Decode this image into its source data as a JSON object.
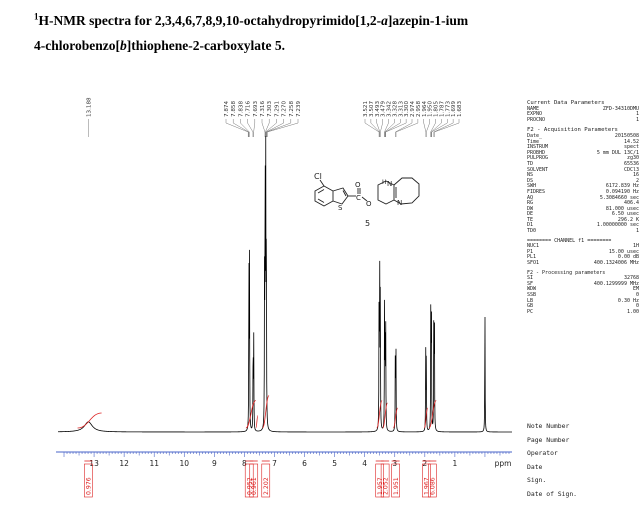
{
  "caption": {
    "nucleus_mass": "1",
    "line1_prefix": "H-NMR spectra for 2,3,4,6,7,8,9,10-octahydropyrimido[1,2-",
    "line1_italic": "a",
    "line1_suffix": "]azepin-1-ium",
    "line2_prefix": "4-chlorobenzo[",
    "line2_italic": "b",
    "line2_suffix": "]thiophene-2-carboxylate 5."
  },
  "structure": {
    "compound_number": "5",
    "cl_label": "Cl",
    "s_label": "S",
    "o_label": "O",
    "n_label": "N",
    "h_label": "H"
  },
  "chart_data": {
    "type": "line",
    "xlabel": "ppm",
    "xlim": [
      14.2,
      -0.9
    ],
    "x_reversed": true,
    "tick_values": [
      13,
      12,
      11,
      10,
      9,
      8,
      7,
      6,
      5,
      4,
      3,
      2,
      1
    ],
    "tick_labels": [
      "13",
      "12",
      "11",
      "10",
      "9",
      "8",
      "7",
      "6",
      "5",
      "4",
      "3",
      "2",
      "1"
    ],
    "peaks": [
      {
        "ppm": 13.19,
        "height": 0.035,
        "width": 0.16
      },
      {
        "ppm": 7.85,
        "height": 0.62
      },
      {
        "ppm": 7.83,
        "height": 0.58
      },
      {
        "ppm": 7.71,
        "height": 0.31
      },
      {
        "ppm": 7.69,
        "height": 0.32
      },
      {
        "ppm": 7.33,
        "height": 0.56
      },
      {
        "ppm": 7.31,
        "height": 0.97
      },
      {
        "ppm": 7.29,
        "height": 0.9
      },
      {
        "ppm": 7.27,
        "height": 0.72
      },
      {
        "ppm": 3.52,
        "height": 0.55
      },
      {
        "ppm": 3.5,
        "height": 0.53
      },
      {
        "ppm": 3.48,
        "height": 0.48
      },
      {
        "ppm": 3.34,
        "height": 0.42
      },
      {
        "ppm": 3.32,
        "height": 0.39
      },
      {
        "ppm": 3.3,
        "height": 0.35
      },
      {
        "ppm": 2.98,
        "height": 0.31
      },
      {
        "ppm": 2.96,
        "height": 0.29
      },
      {
        "ppm": 1.97,
        "height": 0.28
      },
      {
        "ppm": 1.95,
        "height": 0.26
      },
      {
        "ppm": 1.8,
        "height": 0.47
      },
      {
        "ppm": 1.78,
        "height": 0.45
      },
      {
        "ppm": 1.7,
        "height": 0.42
      },
      {
        "ppm": 1.68,
        "height": 0.4
      },
      {
        "ppm": 0.0,
        "height": 0.44
      }
    ],
    "top_labels": {
      "aromatic": [
        "7.874",
        "7.858",
        "7.838",
        "7.716",
        "7.693",
        "7.316",
        "7.303",
        "7.291",
        "7.270",
        "7.258",
        "7.239"
      ],
      "aliphatic": [
        "3.521",
        "3.507",
        "3.493",
        "3.479",
        "3.342",
        "3.328",
        "3.313",
        "3.300",
        "2.974",
        "2.958",
        "1.964",
        "1.950",
        "1.805",
        "1.787",
        "1.773",
        "1.699",
        "1.683"
      ],
      "nh": [
        "13.188"
      ]
    },
    "integrals": [
      {
        "ppm": 13.19,
        "from": 13.55,
        "to": 12.75,
        "rise": 0.3,
        "value": "0.976"
      },
      {
        "ppm": 7.84,
        "from": 7.95,
        "to": 7.62,
        "rise": 0.55,
        "value": "0.952"
      },
      {
        "ppm": 7.69,
        "from": 7.62,
        "to": 7.55,
        "rise": 0.25,
        "value": "0.961"
      },
      {
        "ppm": 7.29,
        "from": 7.4,
        "to": 7.18,
        "rise": 0.65,
        "value": "2.202"
      },
      {
        "ppm": 3.5,
        "from": 3.6,
        "to": 3.42,
        "rise": 0.55,
        "value": "1.957"
      },
      {
        "ppm": 3.32,
        "from": 3.4,
        "to": 3.24,
        "rise": 0.5,
        "value": "2.052"
      },
      {
        "ppm": 2.97,
        "from": 3.05,
        "to": 2.9,
        "rise": 0.4,
        "value": "1.951"
      },
      {
        "ppm": 1.95,
        "from": 2.02,
        "to": 1.9,
        "rise": 0.4,
        "value": "1.967"
      },
      {
        "ppm": 1.75,
        "from": 1.86,
        "to": 1.62,
        "rise": 0.55,
        "value": "6.086"
      }
    ],
    "colors": {
      "spectrum": "#000000",
      "integral": "#dd2222",
      "label": "#333333"
    }
  },
  "params": {
    "current_header": "Current Data Parameters",
    "current": [
      [
        "NAME",
        "ZFD-34310DMU"
      ],
      [
        "EXPNO",
        "1"
      ],
      [
        "PROCNO",
        "1"
      ]
    ],
    "f2_acq_header": "F2 - Acquisition Parameters",
    "acq": [
      [
        "Date_",
        "20150508"
      ],
      [
        "Time",
        "14.52"
      ],
      [
        "INSTRUM",
        "spect"
      ],
      [
        "PROBHD",
        "5 mm DUL 13C/1"
      ],
      [
        "PULPROG",
        "zg30"
      ],
      [
        "TD",
        "65536"
      ],
      [
        "SOLVENT",
        "CDCl3"
      ],
      [
        "NS",
        "16"
      ],
      [
        "DS",
        "2"
      ],
      [
        "SWH",
        "6172.839 Hz"
      ],
      [
        "FIDRES",
        "0.094190 Hz"
      ],
      [
        "AQ",
        "5.3084660 sec"
      ],
      [
        "RG",
        "406.4"
      ],
      [
        "DW",
        "81.000 usec"
      ],
      [
        "DE",
        "6.50 usec"
      ],
      [
        "TE",
        "296.2 K"
      ],
      [
        "D1",
        "1.00000000 sec"
      ],
      [
        "TD0",
        "1"
      ]
    ],
    "channel_header": "======== CHANNEL f1 ========",
    "channel": [
      [
        "NUC1",
        "1H"
      ],
      [
        "P1",
        "15.00 usec"
      ],
      [
        "PL1",
        "0.00 dB"
      ],
      [
        "SFO1",
        "400.1324006 MHz"
      ]
    ],
    "f2_proc_header": "F2 - Processing parameters",
    "proc": [
      [
        "SI",
        "32768"
      ],
      [
        "SF",
        "400.1299999 MHz"
      ],
      [
        "WDW",
        "EM"
      ],
      [
        "SSB",
        "0"
      ],
      [
        "LB",
        "0.30 Hz"
      ],
      [
        "GB",
        "0"
      ],
      [
        "PC",
        "1.00"
      ]
    ]
  },
  "footer": [
    "Note Number",
    "Page Number",
    "Operator",
    "Date",
    "Sign.",
    "Date of Sign."
  ]
}
